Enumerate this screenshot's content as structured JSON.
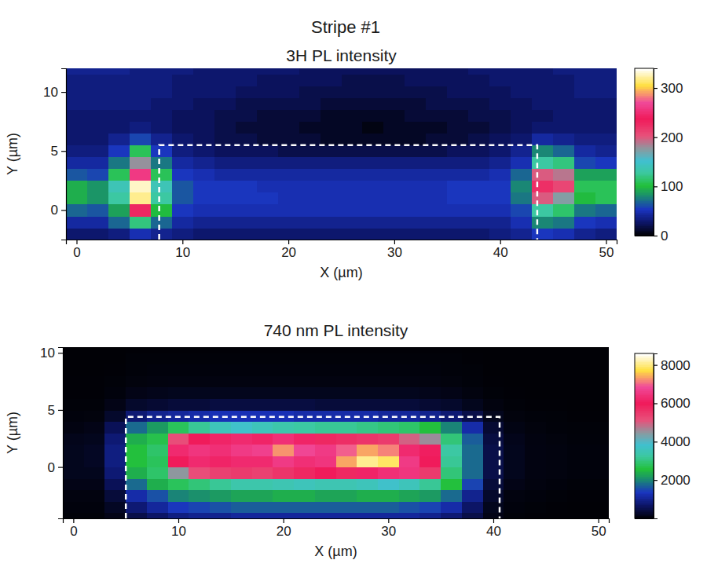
{
  "title": "Stripe #1",
  "chart_data": [
    {
      "type": "heatmap",
      "title": "3H PL intensity",
      "xlabel": "X (µm)",
      "ylabel": "Y (µm)",
      "xlim": [
        -1,
        51
      ],
      "ylim": [
        -2.5,
        12
      ],
      "xticks": [
        0,
        10,
        20,
        30,
        40,
        50
      ],
      "yticks": [
        0,
        5,
        10
      ],
      "zlim": [
        0,
        340
      ],
      "zticks": [
        0,
        100,
        200,
        300
      ],
      "dashed_box": {
        "x": [
          7.8,
          43.5
        ],
        "y": [
          -2.5,
          5.5
        ]
      },
      "x": [
        0,
        2,
        4,
        6,
        8,
        10,
        12,
        14,
        16,
        18,
        20,
        22,
        24,
        26,
        28,
        30,
        32,
        34,
        36,
        38,
        40,
        42,
        44,
        46,
        48,
        50
      ],
      "y": [
        -2,
        -1,
        0,
        1,
        2,
        3,
        4,
        5,
        6,
        7,
        8,
        9,
        10,
        11,
        12
      ],
      "values": [
        [
          30,
          30,
          35,
          50,
          40,
          35,
          30,
          30,
          30,
          30,
          30,
          30,
          30,
          30,
          30,
          30,
          30,
          30,
          30,
          30,
          35,
          40,
          55,
          50,
          40,
          35
        ],
        [
          45,
          45,
          70,
          120,
          70,
          45,
          40,
          40,
          40,
          40,
          40,
          40,
          40,
          40,
          40,
          40,
          40,
          40,
          40,
          40,
          40,
          50,
          80,
          75,
          55,
          50
        ],
        [
          70,
          65,
          90,
          230,
          100,
          55,
          50,
          50,
          50,
          50,
          50,
          50,
          50,
          50,
          50,
          50,
          50,
          50,
          50,
          50,
          50,
          60,
          130,
          115,
          75,
          70
        ],
        [
          95,
          85,
          130,
          320,
          130,
          65,
          55,
          55,
          55,
          55,
          50,
          50,
          50,
          50,
          50,
          50,
          50,
          50,
          55,
          55,
          55,
          75,
          200,
          175,
          100,
          110
        ],
        [
          95,
          85,
          140,
          330,
          140,
          65,
          55,
          55,
          55,
          50,
          50,
          50,
          50,
          50,
          50,
          50,
          50,
          50,
          55,
          55,
          55,
          80,
          225,
          210,
          110,
          110
        ],
        [
          65,
          60,
          110,
          260,
          110,
          55,
          50,
          45,
          45,
          45,
          45,
          45,
          45,
          45,
          45,
          45,
          45,
          45,
          45,
          45,
          50,
          70,
          200,
          190,
          90,
          90
        ],
        [
          45,
          45,
          75,
          180,
          75,
          45,
          40,
          35,
          35,
          35,
          35,
          35,
          35,
          35,
          35,
          35,
          35,
          35,
          35,
          35,
          40,
          50,
          130,
          120,
          60,
          55
        ],
        [
          35,
          35,
          55,
          110,
          55,
          35,
          30,
          25,
          25,
          25,
          20,
          20,
          20,
          20,
          20,
          20,
          20,
          20,
          25,
          25,
          30,
          40,
          80,
          70,
          45,
          40
        ],
        [
          30,
          30,
          40,
          60,
          40,
          30,
          25,
          20,
          20,
          15,
          15,
          15,
          10,
          10,
          10,
          10,
          10,
          15,
          15,
          20,
          25,
          30,
          45,
          40,
          35,
          35
        ],
        [
          30,
          30,
          30,
          35,
          30,
          25,
          25,
          20,
          15,
          15,
          15,
          10,
          10,
          10,
          5,
          10,
          10,
          10,
          15,
          15,
          20,
          25,
          30,
          30,
          30,
          30
        ],
        [
          30,
          30,
          30,
          30,
          30,
          25,
          25,
          20,
          20,
          15,
          15,
          15,
          10,
          10,
          10,
          10,
          15,
          15,
          15,
          20,
          20,
          25,
          25,
          30,
          30,
          30
        ],
        [
          35,
          35,
          35,
          35,
          30,
          30,
          25,
          25,
          20,
          20,
          20,
          20,
          15,
          15,
          15,
          15,
          15,
          20,
          20,
          20,
          25,
          25,
          30,
          30,
          30,
          30
        ],
        [
          35,
          35,
          35,
          35,
          35,
          30,
          30,
          30,
          25,
          25,
          25,
          20,
          20,
          20,
          20,
          20,
          20,
          20,
          25,
          25,
          25,
          30,
          30,
          30,
          35,
          35
        ],
        [
          35,
          35,
          35,
          35,
          35,
          30,
          30,
          30,
          30,
          25,
          25,
          25,
          25,
          20,
          20,
          20,
          25,
          25,
          25,
          25,
          30,
          30,
          30,
          30,
          35,
          35
        ],
        [
          40,
          40,
          40,
          35,
          35,
          35,
          30,
          30,
          30,
          30,
          30,
          25,
          25,
          25,
          25,
          25,
          25,
          25,
          25,
          30,
          30,
          30,
          30,
          35,
          35,
          35
        ]
      ]
    },
    {
      "type": "heatmap",
      "title": "740 nm PL intensity",
      "xlabel": "X (µm)",
      "ylabel": "Y (µm)",
      "xlim": [
        -1,
        51
      ],
      "ylim": [
        -4.5,
        10.5
      ],
      "xticks": [
        0,
        10,
        20,
        30,
        40,
        50
      ],
      "yticks": [
        0,
        5,
        10
      ],
      "zlim": [
        0,
        8600
      ],
      "zticks": [
        2000,
        4000,
        6000,
        8000
      ],
      "dashed_box": {
        "x": [
          5,
          40.6
        ],
        "y": [
          -4.5,
          4.4
        ]
      },
      "x": [
        0,
        2,
        4,
        6,
        8,
        10,
        12,
        14,
        16,
        18,
        20,
        22,
        24,
        26,
        28,
        30,
        32,
        34,
        36,
        38,
        40,
        42,
        44,
        46,
        48,
        50
      ],
      "y": [
        -4.5,
        -3.5,
        -2.5,
        -1.5,
        -0.5,
        0.5,
        1.5,
        2.5,
        3.5,
        4.5,
        5.5,
        6.5,
        7.5,
        8.5,
        9.5,
        10.5
      ],
      "values": [
        [
          60,
          60,
          150,
          500,
          700,
          900,
          1000,
          1000,
          1100,
          1100,
          1100,
          1100,
          1100,
          1100,
          1100,
          1100,
          1100,
          1000,
          800,
          500,
          150,
          60,
          50,
          40,
          40,
          40
        ],
        [
          80,
          80,
          250,
          800,
          1100,
          1400,
          1500,
          1600,
          1700,
          1700,
          1700,
          1700,
          1700,
          1700,
          1700,
          1700,
          1600,
          1500,
          1200,
          700,
          200,
          80,
          60,
          50,
          40,
          40
        ],
        [
          100,
          100,
          400,
          1200,
          1600,
          2000,
          2100,
          2200,
          2300,
          2300,
          2400,
          2400,
          2300,
          2300,
          2400,
          2400,
          2300,
          2200,
          1800,
          1000,
          300,
          100,
          80,
          60,
          50,
          50
        ],
        [
          150,
          150,
          600,
          1800,
          2400,
          2800,
          3000,
          3200,
          3400,
          3400,
          3500,
          3600,
          3500,
          3500,
          3600,
          3800,
          3600,
          3200,
          2600,
          1500,
          400,
          150,
          100,
          80,
          60,
          60
        ],
        [
          200,
          200,
          800,
          2400,
          2900,
          4500,
          5200,
          5400,
          5500,
          5400,
          5600,
          5800,
          6000,
          5800,
          6200,
          6400,
          6500,
          5500,
          3000,
          1800,
          500,
          200,
          120,
          100,
          80,
          80
        ],
        [
          200,
          250,
          900,
          2600,
          2800,
          6000,
          6300,
          6200,
          6300,
          6300,
          6600,
          6400,
          6500,
          7400,
          8100,
          7900,
          6600,
          6000,
          3200,
          1800,
          500,
          200,
          120,
          100,
          80,
          80
        ],
        [
          200,
          250,
          900,
          2600,
          2900,
          6300,
          6500,
          6400,
          6600,
          6700,
          7300,
          6800,
          6600,
          7000,
          7400,
          7200,
          6300,
          6100,
          3300,
          1800,
          500,
          200,
          120,
          100,
          80,
          80
        ],
        [
          180,
          200,
          800,
          2400,
          2700,
          5200,
          6000,
          6200,
          6300,
          6200,
          6400,
          6200,
          5800,
          5700,
          5600,
          5500,
          5000,
          4600,
          3000,
          1700,
          450,
          180,
          110,
          90,
          70,
          70
        ],
        [
          120,
          150,
          600,
          1800,
          2200,
          2800,
          3200,
          3600,
          3800,
          3600,
          3400,
          3300,
          3200,
          3200,
          3100,
          3000,
          2900,
          2600,
          2000,
          1200,
          350,
          130,
          90,
          70,
          60,
          60
        ],
        [
          80,
          90,
          300,
          800,
          1000,
          1100,
          1200,
          1300,
          1300,
          1300,
          1300,
          1200,
          1200,
          1200,
          1200,
          1100,
          1100,
          1000,
          800,
          500,
          200,
          90,
          70,
          60,
          50,
          50
        ],
        [
          60,
          60,
          150,
          300,
          350,
          400,
          400,
          450,
          450,
          450,
          450,
          450,
          400,
          400,
          400,
          400,
          400,
          350,
          300,
          200,
          100,
          60,
          50,
          50,
          40,
          40
        ],
        [
          50,
          50,
          80,
          150,
          180,
          200,
          200,
          200,
          200,
          200,
          200,
          200,
          200,
          200,
          200,
          200,
          200,
          180,
          150,
          100,
          60,
          50,
          40,
          40,
          40,
          40
        ],
        [
          50,
          50,
          60,
          90,
          100,
          110,
          110,
          110,
          110,
          110,
          110,
          110,
          110,
          110,
          110,
          110,
          110,
          100,
          90,
          70,
          50,
          40,
          40,
          40,
          40,
          40
        ],
        [
          40,
          40,
          50,
          70,
          80,
          80,
          80,
          80,
          80,
          80,
          80,
          80,
          80,
          80,
          80,
          80,
          80,
          80,
          70,
          60,
          40,
          40,
          40,
          40,
          40,
          40
        ],
        [
          40,
          40,
          40,
          60,
          60,
          60,
          60,
          60,
          60,
          60,
          60,
          60,
          60,
          60,
          60,
          60,
          60,
          60,
          60,
          50,
          40,
          40,
          40,
          40,
          40,
          40
        ],
        [
          40,
          40,
          40,
          50,
          50,
          50,
          50,
          50,
          50,
          50,
          50,
          50,
          50,
          50,
          50,
          50,
          50,
          50,
          50,
          40,
          40,
          40,
          40,
          40,
          40,
          40
        ]
      ]
    }
  ]
}
